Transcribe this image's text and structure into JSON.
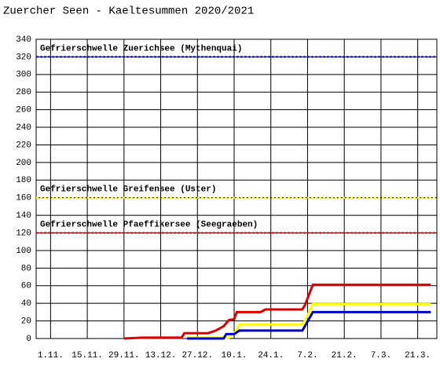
{
  "chart_data": {
    "type": "line",
    "title": "Zuercher Seen - Kaeltesummen 2020/2021",
    "xlim": [
      -5.5,
      147.3
    ],
    "xticks": [
      {
        "value": 0,
        "label": "1.11."
      },
      {
        "value": 14,
        "label": "15.11."
      },
      {
        "value": 28,
        "label": "29.11."
      },
      {
        "value": 42,
        "label": "13.12."
      },
      {
        "value": 56,
        "label": "27.12."
      },
      {
        "value": 70,
        "label": "10.1."
      },
      {
        "value": 84,
        "label": "24.1."
      },
      {
        "value": 98,
        "label": "7.2."
      },
      {
        "value": 112,
        "label": "21.2."
      },
      {
        "value": 126,
        "label": "7.3."
      },
      {
        "value": 140,
        "label": "21.3."
      }
    ],
    "ylim": [
      0,
      340
    ],
    "yticks": [
      0,
      20,
      40,
      60,
      80,
      100,
      120,
      140,
      160,
      180,
      200,
      220,
      240,
      260,
      280,
      300,
      320,
      340
    ],
    "grid": true,
    "annotations": [
      {
        "label": "Gefrierschwelle Zuerichsee (Mythenquai)",
        "value": 320,
        "color": "#0000cc"
      },
      {
        "label": "Gefrierschwelle Greifensee (Uster)",
        "value": 160,
        "color": "#ffff00"
      },
      {
        "label": "Gefrierschwelle Pfaeffikersee (Seegraeben)",
        "value": 120,
        "color": "#dd0000"
      }
    ],
    "series": [
      {
        "color": "#dd0000",
        "x": [
          28,
          35,
          50,
          51,
          60,
          63,
          66,
          68,
          70,
          71,
          80,
          82,
          96,
          97,
          100,
          145
        ],
        "values": [
          0,
          1,
          1,
          6,
          6,
          9,
          14,
          21,
          22,
          30,
          30,
          33,
          33,
          38,
          61,
          61
        ]
      },
      {
        "color": "#ffff00",
        "x": [
          52,
          68,
          70,
          71,
          72,
          96,
          97,
          100,
          145
        ],
        "values": [
          1,
          1,
          6,
          10,
          16,
          16,
          20,
          39,
          39
        ]
      },
      {
        "color": "#0000cc",
        "x": [
          52,
          66,
          67,
          70,
          72,
          96,
          97,
          100,
          145
        ],
        "values": [
          0,
          0,
          5,
          5,
          9,
          9,
          14,
          30,
          30
        ]
      }
    ]
  }
}
